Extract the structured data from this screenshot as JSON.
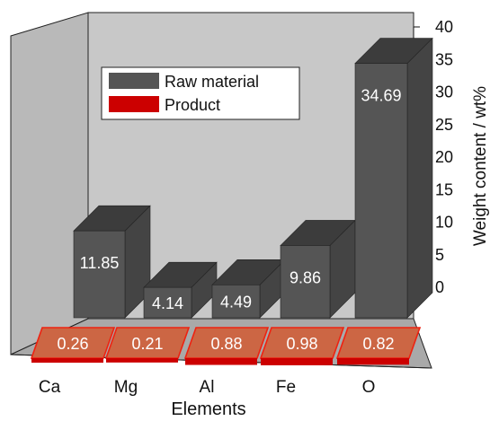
{
  "chart_data": {
    "type": "bar",
    "categories": [
      "Ca",
      "Mg",
      "Al",
      "Fe",
      "O"
    ],
    "series": [
      {
        "name": "Raw material",
        "values": [
          11.85,
          4.14,
          4.49,
          9.86,
          34.69
        ],
        "labels": [
          "11.85",
          "4.14",
          "4.49",
          "9.86",
          "34.69"
        ],
        "color": "#555555"
      },
      {
        "name": "Product",
        "values": [
          0.26,
          0.21,
          0.88,
          0.98,
          0.82
        ],
        "labels": [
          "0.26",
          "0.21",
          "0.88",
          "0.98",
          "0.82"
        ],
        "color": "#cc0000"
      }
    ],
    "xlabel": "Elements",
    "ylabel": "Weight content / wt%",
    "ylim": [
      0,
      40
    ],
    "yticks": [
      "0",
      "5",
      "10",
      "15",
      "20",
      "25",
      "30",
      "35",
      "40"
    ],
    "legend": "top-left",
    "style": "3d",
    "colors": {
      "back_wall": "#c8c8c8",
      "side_wall": "#b4b4b4",
      "floor": "#a9a9a9",
      "raw_front": "#555555",
      "raw_top": "#3c3c3c",
      "raw_side": "#444444",
      "product_face": "#cc6644",
      "product_edge": "#ee2211"
    }
  }
}
